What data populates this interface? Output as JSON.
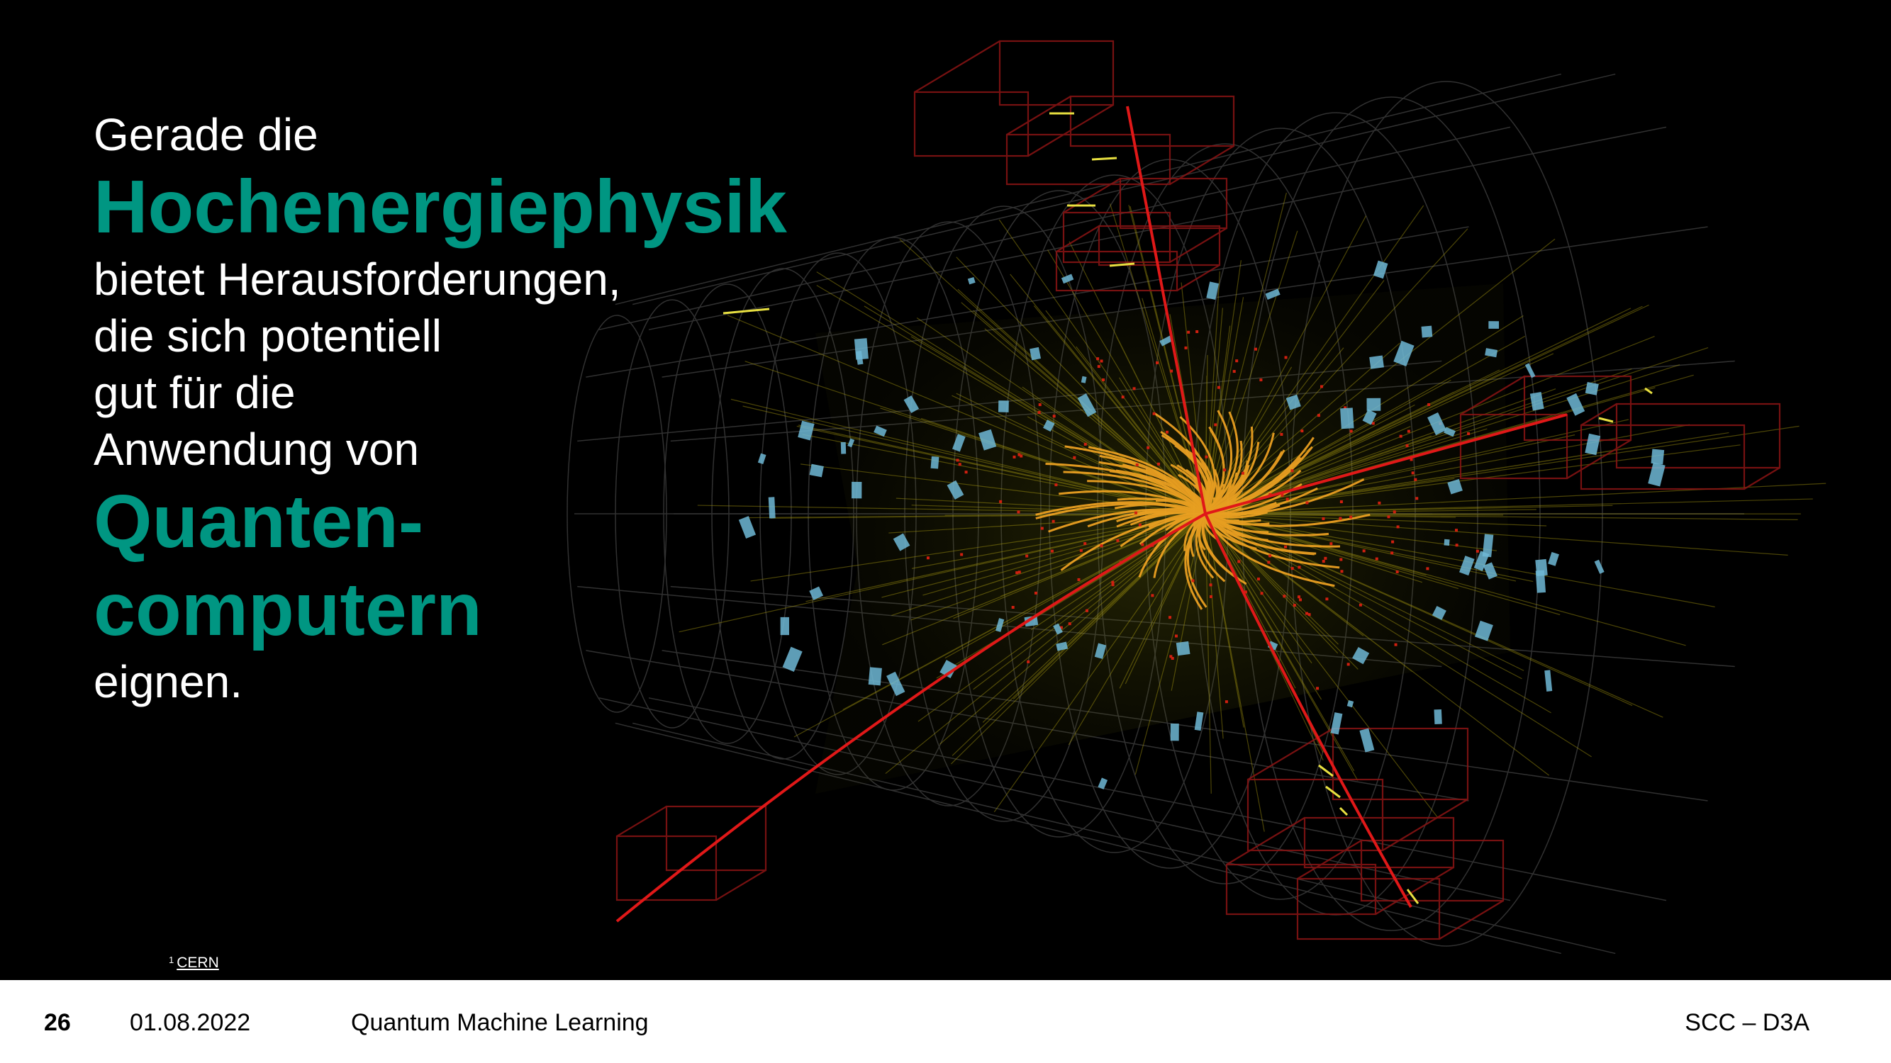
{
  "slide": {
    "intro": "Gerade die",
    "highlight_1": "Hochenergiephysik",
    "body_lines": [
      "bietet Herausforderungen,",
      "die sich potentiell",
      "gut für die",
      "Anwendung von"
    ],
    "highlight_2_lines": [
      "Quanten-",
      "computern"
    ],
    "outro": "eignen.",
    "accent_color": "#009682"
  },
  "image": {
    "description_icon": "particle-collision-event-display",
    "footnote_mark": "1",
    "footnote_link": "CERN"
  },
  "footer": {
    "page_number": "26",
    "date": "01.08.2022",
    "title": "Quantum Machine Learning",
    "organization": "SCC – D3A"
  }
}
